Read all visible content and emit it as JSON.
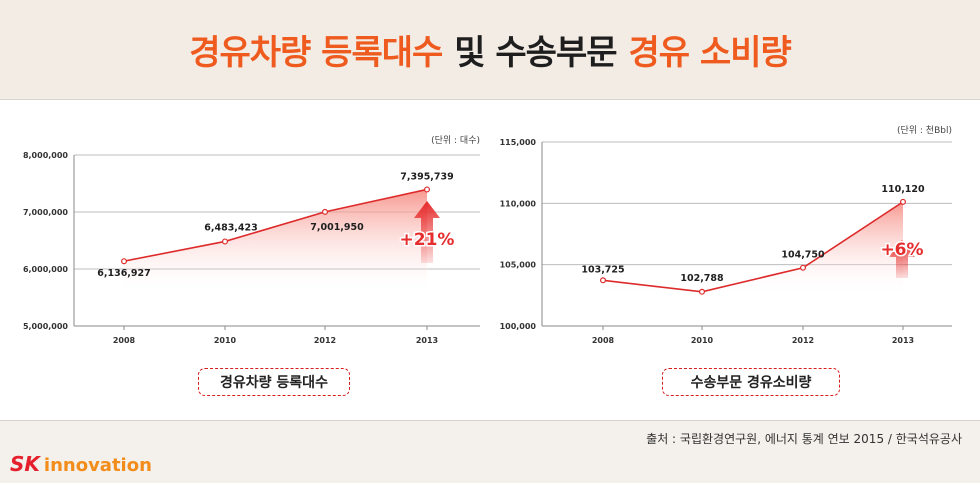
{
  "title": {
    "part1": "경유차량 등록대수",
    "part2": "및 수송부문",
    "part3": "경유 소비량"
  },
  "colors": {
    "accent": "#ef5a1e",
    "line": "#dd2b2b",
    "arrow": "#e62d2d",
    "brand_red": "#e4202c",
    "brand_orange": "#f28c1a"
  },
  "chart_data": [
    {
      "type": "area",
      "title": "경유차량 등록대수",
      "unit": "(단위 : 대수)",
      "categories": [
        "2008",
        "2010",
        "2012",
        "2013"
      ],
      "values": [
        6136927,
        6483423,
        7001950,
        7395739
      ],
      "value_labels": [
        "6,136,927",
        "6,483,423",
        "7,001,950",
        "7,395,739"
      ],
      "ylim": [
        5000000,
        8000000
      ],
      "yticks": [
        5000000,
        6000000,
        7000000,
        8000000
      ],
      "ytick_labels": [
        "5,000,000",
        "6,000,000",
        "7,000,000",
        "8,000,000"
      ],
      "grid": true,
      "annotation": "+21%"
    },
    {
      "type": "area",
      "title": "수송부문 경유소비량",
      "unit": "(단위 : 천Bbl)",
      "categories": [
        "2008",
        "2010",
        "2012",
        "2013"
      ],
      "values": [
        103725,
        102788,
        104750,
        110120
      ],
      "value_labels": [
        "103,725",
        "102,788",
        "104,750",
        "110,120"
      ],
      "ylim": [
        100000,
        115000
      ],
      "yticks": [
        100000,
        105000,
        110000,
        115000
      ],
      "ytick_labels": [
        "100,000",
        "105,000",
        "110,000",
        "115,000"
      ],
      "grid": true,
      "annotation": "+6%"
    }
  ],
  "captions": {
    "left": "경유차량 등록대수",
    "right": "수송부문 경유소비량"
  },
  "source": "출처 : 국립환경연구원, 에너지 통계 연보 2015 / 한국석유공사",
  "logo": {
    "sk": "SK",
    "innovation": "innovation"
  }
}
